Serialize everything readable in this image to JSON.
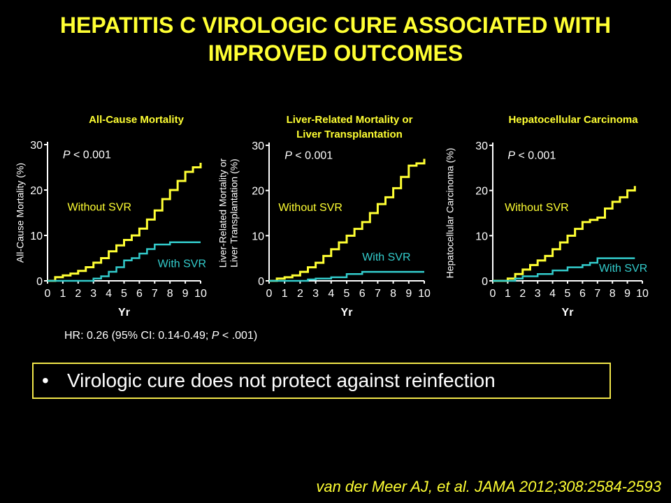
{
  "title": {
    "line1": "HEPATITIS C VIROLOGIC CURE ASSOCIATED WITH",
    "line2": "IMPROVED OUTCOMES"
  },
  "colors": {
    "title": "#ffff33",
    "without": "#ffff33",
    "with": "#33cccc"
  },
  "chart_data": [
    {
      "type": "line",
      "title": [
        "All-Cause Mortality"
      ],
      "ylabel": [
        "All-Cause Mortality (%)"
      ],
      "xlabel": "Yr",
      "xlim": [
        0,
        10
      ],
      "ylim": [
        0,
        30
      ],
      "xticks": [
        0,
        1,
        2,
        3,
        4,
        5,
        6,
        7,
        8,
        9,
        10
      ],
      "yticks": [
        0,
        10,
        20,
        30
      ],
      "pvalue": {
        "italic": "P",
        "rest": " < 0.001"
      },
      "series": [
        {
          "name": "Without SVR",
          "color": "#ffff33",
          "x": [
            0,
            0.5,
            1,
            1.5,
            2,
            2.5,
            3,
            3.5,
            4,
            4.5,
            5,
            5.5,
            6,
            6.5,
            7,
            7.5,
            8,
            8.5,
            9,
            9.5,
            10
          ],
          "y": [
            0,
            0.8,
            1.2,
            1.6,
            2.2,
            3,
            4,
            5,
            6.5,
            7.8,
            9,
            10,
            11.5,
            13.5,
            15.5,
            18,
            20,
            22,
            24,
            25,
            26
          ]
        },
        {
          "name": "With SVR",
          "color": "#33cccc",
          "x": [
            0,
            3,
            3.5,
            4,
            4.5,
            5,
            5.5,
            6,
            6.5,
            7,
            8,
            9,
            10
          ],
          "y": [
            0,
            0.5,
            1,
            2,
            3,
            4.5,
            5,
            6,
            7,
            8,
            8.5,
            8.5,
            8.5
          ]
        }
      ],
      "labels": [
        {
          "text": "Without SVR",
          "color": "#ffff33",
          "x": 1.3,
          "y": 15.5
        },
        {
          "text": "With SVR",
          "color": "#33cccc",
          "x": 7.2,
          "y": 3
        }
      ]
    },
    {
      "type": "line",
      "title": [
        "Liver-Related Mortality or",
        "Liver Transplantation"
      ],
      "ylabel": [
        "Liver-Related Mortality or",
        "Liver Transplantation (%)"
      ],
      "xlabel": "Yr",
      "xlim": [
        0,
        10
      ],
      "ylim": [
        0,
        30
      ],
      "xticks": [
        0,
        1,
        2,
        3,
        4,
        5,
        6,
        7,
        8,
        9,
        10
      ],
      "yticks": [
        0,
        10,
        20,
        30
      ],
      "pvalue": {
        "italic": "P",
        "rest": " < 0.001"
      },
      "series": [
        {
          "name": "Without SVR",
          "color": "#ffff33",
          "x": [
            0,
            0.5,
            1,
            1.5,
            2,
            2.5,
            3,
            3.5,
            4,
            4.5,
            5,
            5.5,
            6,
            6.5,
            7,
            7.5,
            8,
            8.5,
            9,
            9.5,
            10
          ],
          "y": [
            0,
            0.5,
            0.8,
            1.2,
            2,
            3,
            4,
            5.5,
            7,
            8.5,
            10,
            11.5,
            13,
            15,
            17,
            18.5,
            20.5,
            23,
            25.5,
            26,
            27
          ]
        },
        {
          "name": "With SVR",
          "color": "#33cccc",
          "x": [
            0,
            2,
            2.5,
            3,
            4,
            5,
            6,
            7,
            8,
            9,
            10
          ],
          "y": [
            0,
            0,
            0.3,
            0.5,
            0.8,
            1.5,
            2,
            2,
            2,
            2,
            2
          ]
        }
      ],
      "labels": [
        {
          "text": "Without SVR",
          "color": "#ffff33",
          "x": 0.6,
          "y": 15.5
        },
        {
          "text": "With SVR",
          "color": "#33cccc",
          "x": 6,
          "y": 4.5
        }
      ]
    },
    {
      "type": "line",
      "title": [
        "Hepatocellular Carcinoma"
      ],
      "ylabel": [
        "Hepatocellular Carcinoma (%)"
      ],
      "xlabel": "Yr",
      "xlim": [
        0,
        10
      ],
      "ylim": [
        0,
        30
      ],
      "xticks": [
        0,
        1,
        2,
        3,
        4,
        5,
        6,
        7,
        8,
        9,
        10
      ],
      "yticks": [
        0,
        10,
        20,
        30
      ],
      "pvalue": {
        "italic": "P",
        "rest": " < 0.001"
      },
      "series": [
        {
          "name": "Without SVR",
          "color": "#ffff33",
          "x": [
            0,
            0.5,
            1,
            1.5,
            2,
            2.5,
            3,
            3.5,
            4,
            4.5,
            5,
            5.5,
            6,
            6.5,
            7,
            7.5,
            8,
            8.5,
            9,
            9.5
          ],
          "y": [
            0,
            0,
            0.5,
            1.5,
            2.5,
            3.5,
            4.5,
            5.5,
            7,
            8.5,
            10,
            11.5,
            13,
            13.5,
            14,
            16,
            17.5,
            18.5,
            20,
            21
          ]
        },
        {
          "name": "With SVR",
          "color": "#33cccc",
          "x": [
            0,
            1,
            1.5,
            2,
            3,
            4,
            5,
            6,
            6.5,
            7,
            8,
            9,
            9.5
          ],
          "y": [
            0,
            0,
            0.5,
            1,
            1.5,
            2.3,
            3,
            3.5,
            4,
            5,
            5,
            5,
            5
          ]
        }
      ],
      "labels": [
        {
          "text": "Without SVR",
          "color": "#ffff33",
          "x": 0.8,
          "y": 15.5
        },
        {
          "text": "With SVR",
          "color": "#33cccc",
          "x": 7.1,
          "y": 2
        }
      ]
    }
  ],
  "hr_note": "HR: 0.26 (95% CI: 0.14-0.49; P < .001)",
  "hr_note_parts": {
    "before": "HR: 0.26 (95% CI: 0.14-0.49; ",
    "italic": "P",
    "after": " < .001)"
  },
  "bullet": {
    "marker": "•",
    "text": "Virologic cure does not protect against reinfection"
  },
  "citation": "van der Meer AJ, et al. JAMA 2012;308:2584-2593"
}
